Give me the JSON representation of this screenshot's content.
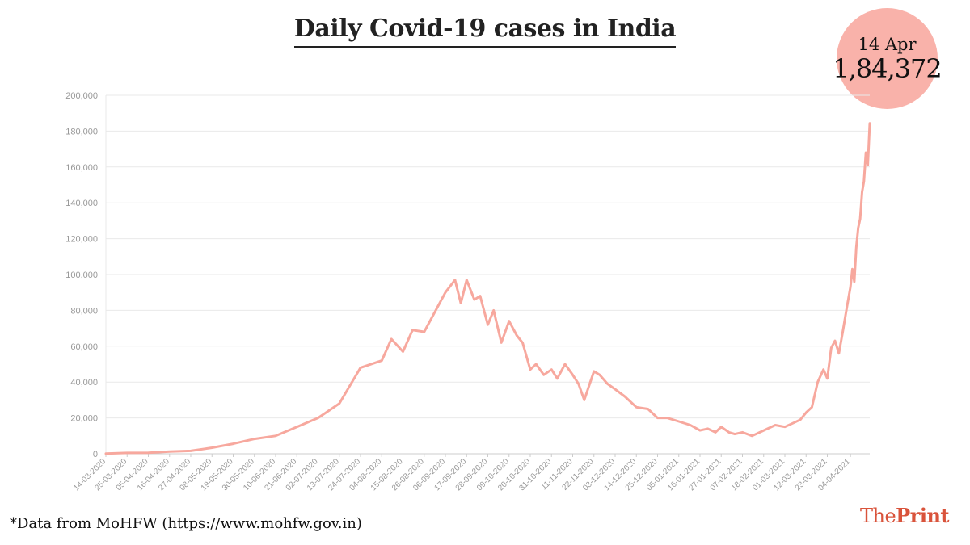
{
  "header": {
    "title": "Daily Covid-19 cases in India"
  },
  "highlight": {
    "date": "14 Apr",
    "value": "1,84,372"
  },
  "footer": {
    "source": "*Data from MoHFW (https://www.mohfw.gov.in)",
    "brand_the": "The",
    "brand_print": "Print"
  },
  "colors": {
    "line": "#f7a89e",
    "badge": "#f9b2aa",
    "brand": "#d9533b",
    "grid": "#e9e9e9",
    "tick_text": "#999999"
  },
  "chart_data": {
    "type": "line",
    "title": "Daily Covid-19 cases in India",
    "xlabel": "",
    "ylabel": "",
    "ylim": [
      0,
      200000
    ],
    "yticks": [
      0,
      20000,
      40000,
      60000,
      80000,
      100000,
      120000,
      140000,
      160000,
      180000,
      200000
    ],
    "ytick_labels": [
      "0",
      "20,000",
      "40,000",
      "60,000",
      "80,000",
      "100,000",
      "120,000",
      "140,000",
      "160,000",
      "180,000",
      "200,000"
    ],
    "xtick_labels": [
      "14-03-2020",
      "25-03-2020",
      "05-04-2020",
      "16-04-2020",
      "27-04-2020",
      "08-05-2020",
      "19-05-2020",
      "30-05-2020",
      "10-06-2020",
      "21-06-2020",
      "02-07-2020",
      "13-07-2020",
      "24-07-2020",
      "04-08-2020",
      "15-08-2020",
      "26-08-2020",
      "06-09-2020",
      "17-09-2020",
      "28-09-2020",
      "09-10-2020",
      "20-10-2020",
      "31-10-2020",
      "11-11-2020",
      "22-11-2020",
      "03-12-2020",
      "14-12-2020",
      "25-12-2020",
      "05-01-2021",
      "16-01-2021",
      "27-01-2021",
      "07-02-2021",
      "18-02-2021",
      "01-03-2021",
      "12-03-2021",
      "23-03-2021",
      "04-04-2021"
    ],
    "grid": true,
    "legend": "none",
    "series": [
      {
        "x": [
          "2020-03-14",
          "2020-03-25",
          "2020-04-05",
          "2020-04-16",
          "2020-04-27",
          "2020-05-08",
          "2020-05-19",
          "2020-05-30",
          "2020-06-10",
          "2020-06-21",
          "2020-07-02",
          "2020-07-13",
          "2020-07-24",
          "2020-08-04",
          "2020-08-09",
          "2020-08-15",
          "2020-08-20",
          "2020-08-26",
          "2020-08-31",
          "2020-09-06",
          "2020-09-11",
          "2020-09-14",
          "2020-09-17",
          "2020-09-21",
          "2020-09-24",
          "2020-09-28",
          "2020-10-01",
          "2020-10-05",
          "2020-10-09",
          "2020-10-13",
          "2020-10-16",
          "2020-10-20",
          "2020-10-23",
          "2020-10-27",
          "2020-10-31",
          "2020-11-03",
          "2020-11-07",
          "2020-11-11",
          "2020-11-14",
          "2020-11-17",
          "2020-11-22",
          "2020-11-25",
          "2020-11-29",
          "2020-12-03",
          "2020-12-08",
          "2020-12-14",
          "2020-12-20",
          "2020-12-25",
          "2020-12-30",
          "2021-01-05",
          "2021-01-11",
          "2021-01-16",
          "2021-01-20",
          "2021-01-24",
          "2021-01-27",
          "2021-01-31",
          "2021-02-03",
          "2021-02-07",
          "2021-02-12",
          "2021-02-18",
          "2021-02-24",
          "2021-03-01",
          "2021-03-05",
          "2021-03-09",
          "2021-03-12",
          "2021-03-15",
          "2021-03-18",
          "2021-03-21",
          "2021-03-23",
          "2021-03-25",
          "2021-03-27",
          "2021-03-29",
          "2021-03-31",
          "2021-04-02",
          "2021-04-04",
          "2021-04-05",
          "2021-04-06",
          "2021-04-07",
          "2021-04-08",
          "2021-04-09",
          "2021-04-10",
          "2021-04-11",
          "2021-04-12",
          "2021-04-13",
          "2021-04-14"
        ],
        "values": [
          100,
          500,
          600,
          1200,
          1600,
          3400,
          5600,
          8300,
          10000,
          15000,
          20000,
          28000,
          48000,
          52000,
          64000,
          57000,
          69000,
          68000,
          78000,
          90000,
          97000,
          84000,
          97000,
          86000,
          88000,
          72000,
          80000,
          62000,
          74000,
          66000,
          62000,
          47000,
          50000,
          44000,
          47000,
          42000,
          50000,
          44000,
          39000,
          30000,
          46000,
          44000,
          39000,
          36000,
          32000,
          26000,
          25000,
          20000,
          20000,
          18000,
          16000,
          13000,
          14000,
          12000,
          15000,
          12000,
          11000,
          12000,
          10000,
          13000,
          16000,
          15000,
          17000,
          19000,
          23000,
          26000,
          40000,
          47000,
          42000,
          59000,
          63000,
          56000,
          68000,
          81000,
          93000,
          103000,
          96000,
          115000,
          126000,
          131000,
          146000,
          152000,
          168000,
          161000,
          184372
        ]
      }
    ]
  }
}
